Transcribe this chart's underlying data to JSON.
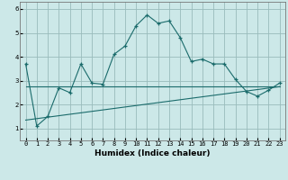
{
  "title": "",
  "xlabel": "Humidex (Indice chaleur)",
  "background_color": "#cce8e8",
  "line_color": "#1a6b6b",
  "grid_color": "#99bbbb",
  "x_values": [
    0,
    1,
    2,
    3,
    4,
    5,
    6,
    7,
    8,
    9,
    10,
    11,
    12,
    13,
    14,
    15,
    16,
    17,
    18,
    19,
    20,
    21,
    22,
    23
  ],
  "y_main": [
    3.7,
    1.1,
    1.5,
    2.7,
    2.5,
    3.7,
    2.9,
    2.85,
    4.1,
    4.45,
    5.3,
    5.75,
    5.4,
    5.5,
    4.8,
    3.8,
    3.9,
    3.7,
    3.7,
    3.05,
    2.55,
    2.35,
    2.6,
    2.9
  ],
  "y_line1": 2.75,
  "y_line2_start": 1.35,
  "y_line2_end": 2.75,
  "xlim": [
    -0.5,
    23.5
  ],
  "ylim": [
    0.5,
    6.3
  ],
  "yticks": [
    1,
    2,
    3,
    4,
    5,
    6
  ],
  "xticks": [
    0,
    1,
    2,
    3,
    4,
    5,
    6,
    7,
    8,
    9,
    10,
    11,
    12,
    13,
    14,
    15,
    16,
    17,
    18,
    19,
    20,
    21,
    22,
    23
  ],
  "xtick_labels": [
    "0",
    "1",
    "2",
    "3",
    "4",
    "5",
    "6",
    "7",
    "8",
    "9",
    "10",
    "11",
    "12",
    "13",
    "14",
    "15",
    "16",
    "17",
    "18",
    "19",
    "20",
    "21",
    "22",
    "23"
  ],
  "font_size_label": 6.5,
  "font_size_tick": 5.0,
  "label_fontweight": "bold"
}
